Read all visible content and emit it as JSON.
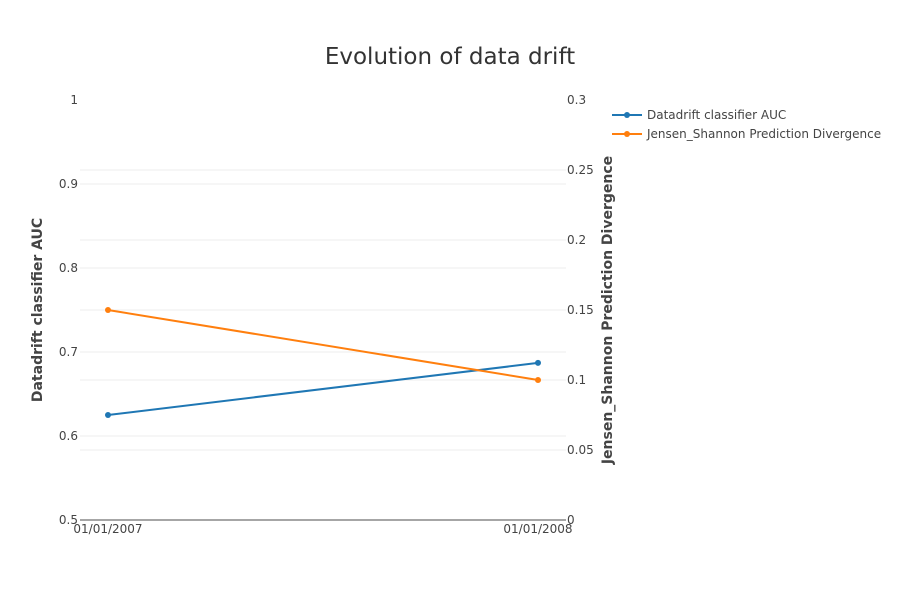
{
  "chart_data": {
    "type": "line",
    "title": "Evolution of data drift",
    "x": [
      "01/01/2007",
      "01/01/2008"
    ],
    "ylabel": "Datadrift classifier AUC",
    "y2label": "Jensen_Shannon Prediction Divergence",
    "ylim": [
      0.5,
      1
    ],
    "y2lim": [
      0,
      0.3
    ],
    "yticks": [
      "0.5",
      "0.6",
      "0.7",
      "0.8",
      "0.9",
      "1"
    ],
    "y2ticks": [
      "0",
      "0.05",
      "0.1",
      "0.15",
      "0.2",
      "0.25",
      "0.3"
    ],
    "grid": true,
    "legend_position": "top-right",
    "series": [
      {
        "name": "Datadrift classifier AUC",
        "axis": "left",
        "values": [
          0.625,
          0.687
        ],
        "color": "#1f77b4"
      },
      {
        "name": "Jensen_Shannon Prediction Divergence",
        "axis": "right",
        "values": [
          0.15,
          0.1
        ],
        "color": "#ff7f0e"
      }
    ]
  }
}
